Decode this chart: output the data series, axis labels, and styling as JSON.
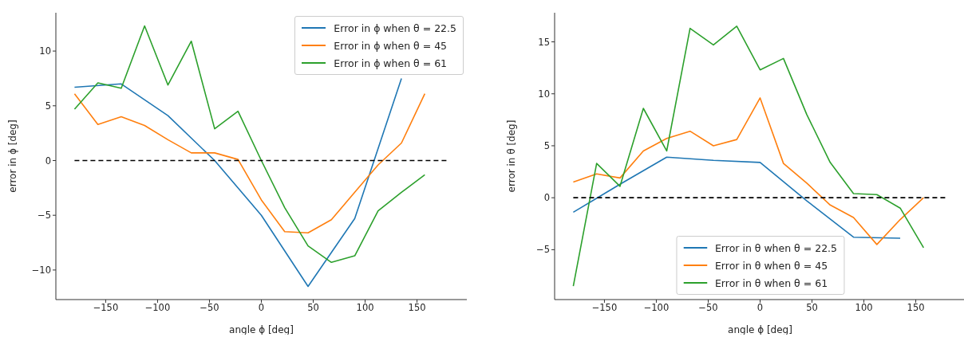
{
  "chart_data": [
    {
      "type": "line",
      "xlabel": "angle ϕ [deg]",
      "ylabel": "error in ϕ [deg]",
      "xlim": [
        -198,
        198
      ],
      "xticks": [
        -150,
        -100,
        -50,
        0,
        50,
        100,
        150
      ],
      "ylim": [
        -12.7,
        13.5
      ],
      "yticks": [
        -10,
        -5,
        0,
        5,
        10
      ],
      "grid": false,
      "legend": "top right",
      "marker": "none",
      "x": [
        -180,
        -157.5,
        -135,
        -112.5,
        -90,
        -67.5,
        -45,
        -22.5,
        0,
        22.5,
        45,
        67.5,
        90,
        112.5,
        135,
        157.5
      ],
      "series": [
        {
          "name": "Error in ϕ when θ = 22.5",
          "color": "#1f77b4",
          "x": [
            -180,
            -135,
            -90,
            -45,
            0,
            45,
            90,
            135
          ],
          "values": [
            6.7,
            7.0,
            4.1,
            0,
            -5.0,
            -11.5,
            -5.3,
            7.5
          ]
        },
        {
          "name": "Error in ϕ when θ = 45",
          "color": "#ff7f0e",
          "values": [
            6.1,
            3.3,
            4.0,
            3.2,
            1.9,
            0.7,
            0.7,
            0.1,
            -3.6,
            -6.5,
            -6.6,
            -5.4,
            -2.9,
            -0.4,
            1.6,
            6.1
          ]
        },
        {
          "name": "Error in ϕ when θ = 61",
          "color": "#2ca02c",
          "values": [
            4.7,
            7.1,
            6.6,
            12.3,
            6.9,
            10.9,
            2.9,
            4.5,
            0,
            -4.3,
            -7.8,
            -9.3,
            -8.7,
            -4.6,
            -2.9,
            -1.3
          ]
        },
        {
          "color": "#000000",
          "line_style": "dashed",
          "x": [
            -180,
            180
          ],
          "values": [
            0,
            0
          ]
        }
      ]
    },
    {
      "type": "line",
      "xlabel": "angle ϕ [deg]",
      "ylabel": "error in θ [deg]",
      "xlim": [
        -198,
        198
      ],
      "xticks": [
        -150,
        -100,
        -50,
        0,
        50,
        100,
        150
      ],
      "ylim": [
        -9.8,
        17.8
      ],
      "yticks": [
        -5,
        0,
        5,
        10,
        15
      ],
      "grid": false,
      "legend": "bottom",
      "marker": "none",
      "x": [
        -180,
        -157.5,
        -135,
        -112.5,
        -90,
        -67.5,
        -45,
        -22.5,
        0,
        22.5,
        45,
        67.5,
        90,
        112.5,
        135,
        157.5
      ],
      "series": [
        {
          "name": "Error in θ when θ = 22.5",
          "color": "#1f77b4",
          "x": [
            -180,
            -135,
            -90,
            -45,
            0,
            45,
            90,
            135
          ],
          "values": [
            -1.4,
            1.3,
            3.9,
            3.6,
            3.4,
            -0.3,
            -3.8,
            -3.9
          ]
        },
        {
          "name": "Error in θ when θ = 45",
          "color": "#ff7f0e",
          "values": [
            1.5,
            2.3,
            1.9,
            4.5,
            5.7,
            6.4,
            5.0,
            5.6,
            9.6,
            3.3,
            1.4,
            -0.7,
            -1.9,
            -4.5,
            -2.1,
            0.0
          ]
        },
        {
          "name": "Error in θ when θ = 61",
          "color": "#2ca02c",
          "values": [
            -8.5,
            3.3,
            1.1,
            8.6,
            4.5,
            16.3,
            14.7,
            16.5,
            12.3,
            13.4,
            8.0,
            3.4,
            0.4,
            0.3,
            -1.0,
            -4.8
          ]
        },
        {
          "color": "#000000",
          "line_style": "dashed",
          "x": [
            -180,
            180
          ],
          "values": [
            0,
            0
          ]
        }
      ]
    }
  ]
}
